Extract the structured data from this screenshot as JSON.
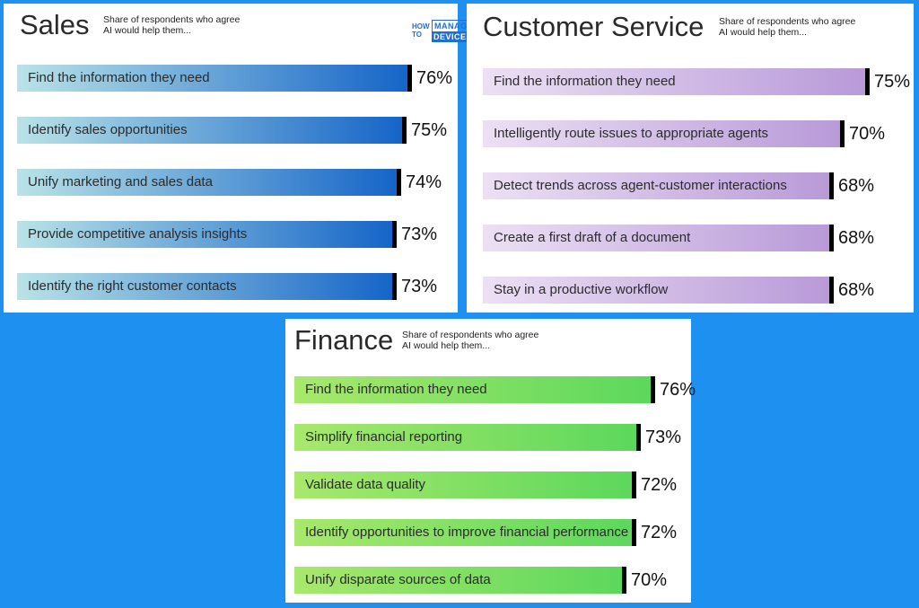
{
  "colors": {
    "background": "#1e90f0",
    "sales_bar_start": "#b9e3e7",
    "sales_bar_end": "#1565c8",
    "cs_bar_start": "#ece0f4",
    "cs_bar_end": "#b89ad8",
    "finance_bar_start": "#a8e86c",
    "finance_bar_end": "#5cd85c"
  },
  "logo": {
    "how": "HOW",
    "to": "TO",
    "manage": "MANAGE",
    "devices": "DEVICES"
  },
  "chart_data": [
    {
      "type": "bar",
      "orientation": "horizontal",
      "title": "Sales",
      "subtitle_line1": "Share of respondents who agree",
      "subtitle_line2": "AI would help them...",
      "categories": [
        "Find the information they need",
        "Identify sales opportunities",
        "Unify marketing and sales data",
        "Provide competitive analysis insights",
        "Identify the right customer contacts"
      ],
      "values": [
        76,
        75,
        74,
        73,
        73
      ],
      "value_labels": [
        "76%",
        "75%",
        "74%",
        "73%",
        "73%"
      ]
    },
    {
      "type": "bar",
      "orientation": "horizontal",
      "title": "Customer Service",
      "subtitle_line1": "Share of respondents who agree",
      "subtitle_line2": "AI would help them...",
      "categories": [
        "Find the information they need",
        "Intelligently route issues to appropriate agents",
        "Detect trends across agent-customer interactions",
        "Create a first draft of a document",
        "Stay in a productive workflow"
      ],
      "values": [
        75,
        70,
        68,
        68,
        68
      ],
      "value_labels": [
        "75%",
        "70%",
        "68%",
        "68%",
        "68%"
      ]
    },
    {
      "type": "bar",
      "orientation": "horizontal",
      "title": "Finance",
      "subtitle_line1": "Share of respondents who agree",
      "subtitle_line2": "AI would help them...",
      "categories": [
        "Find the information they need",
        "Simplify financial reporting",
        "Validate data quality",
        "Identify opportunities to improve financial performance",
        "Unify disparate sources of data"
      ],
      "values": [
        76,
        73,
        72,
        72,
        70
      ],
      "value_labels": [
        "76%",
        "73%",
        "72%",
        "72%",
        "70%"
      ]
    }
  ]
}
